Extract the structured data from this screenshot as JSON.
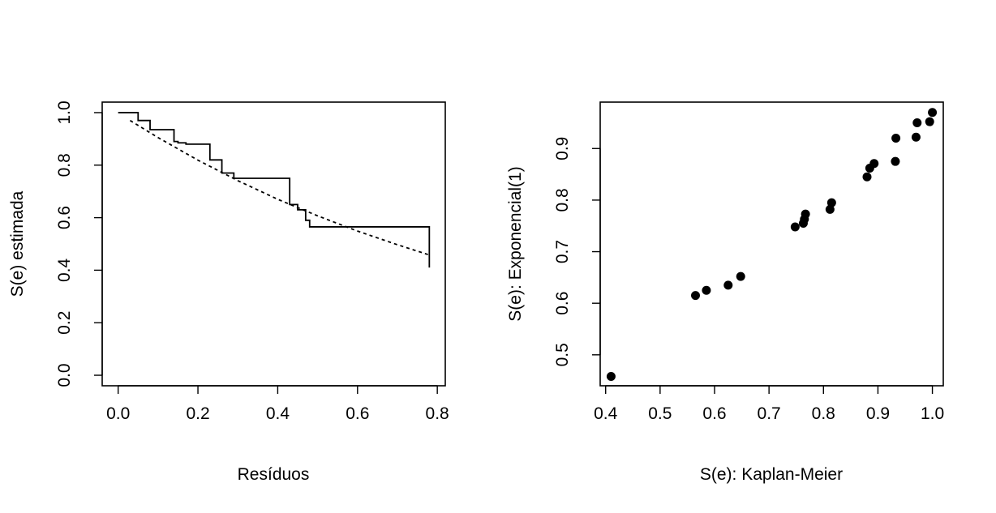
{
  "chart_data": [
    {
      "type": "line",
      "xlabel": "Resíduos",
      "ylabel": "S(e) estimada",
      "xlim": [
        -0.04,
        0.82
      ],
      "ylim": [
        -0.04,
        1.04
      ],
      "xticks": [
        "0.0",
        "0.2",
        "0.4",
        "0.6",
        "0.8"
      ],
      "yticks": [
        "0.0",
        "0.2",
        "0.4",
        "0.6",
        "0.8",
        "1.0"
      ],
      "series": [
        {
          "style": "step-solid",
          "x": [
            0.0,
            0.05,
            0.05,
            0.08,
            0.08,
            0.14,
            0.14,
            0.15,
            0.15,
            0.17,
            0.17,
            0.23,
            0.23,
            0.26,
            0.26,
            0.29,
            0.29,
            0.43,
            0.43,
            0.45,
            0.45,
            0.47,
            0.47,
            0.48,
            0.48,
            0.78,
            0.78
          ],
          "y": [
            1.0,
            1.0,
            0.97,
            0.97,
            0.935,
            0.935,
            0.89,
            0.89,
            0.885,
            0.885,
            0.88,
            0.88,
            0.82,
            0.82,
            0.77,
            0.77,
            0.75,
            0.75,
            0.65,
            0.65,
            0.63,
            0.63,
            0.59,
            0.59,
            0.565,
            0.565,
            0.41
          ]
        },
        {
          "style": "dotted",
          "x": [
            0.03,
            0.1,
            0.2,
            0.3,
            0.4,
            0.5,
            0.6,
            0.7,
            0.78
          ],
          "y": [
            0.97,
            0.905,
            0.819,
            0.741,
            0.67,
            0.607,
            0.549,
            0.497,
            0.458
          ]
        }
      ]
    },
    {
      "type": "scatter",
      "xlabel": "S(e): Kaplan-Meier",
      "ylabel": "S(e): Exponencial(1)",
      "xlim": [
        0.39,
        1.02
      ],
      "ylim": [
        0.44,
        0.99
      ],
      "xticks": [
        "0.4",
        "0.5",
        "0.6",
        "0.7",
        "0.8",
        "0.9",
        "1.0"
      ],
      "yticks": [
        "0.5",
        "0.6",
        "0.7",
        "0.8",
        "0.9"
      ],
      "points": [
        [
          0.41,
          0.458
        ],
        [
          0.565,
          0.615
        ],
        [
          0.585,
          0.625
        ],
        [
          0.625,
          0.635
        ],
        [
          0.648,
          0.652
        ],
        [
          0.748,
          0.748
        ],
        [
          0.763,
          0.755
        ],
        [
          0.765,
          0.763
        ],
        [
          0.767,
          0.773
        ],
        [
          0.812,
          0.782
        ],
        [
          0.815,
          0.795
        ],
        [
          0.88,
          0.845
        ],
        [
          0.885,
          0.862
        ],
        [
          0.893,
          0.871
        ],
        [
          0.932,
          0.875
        ],
        [
          0.933,
          0.92
        ],
        [
          0.97,
          0.922
        ],
        [
          0.972,
          0.95
        ],
        [
          0.995,
          0.952
        ],
        [
          1.0,
          0.97
        ]
      ]
    }
  ]
}
